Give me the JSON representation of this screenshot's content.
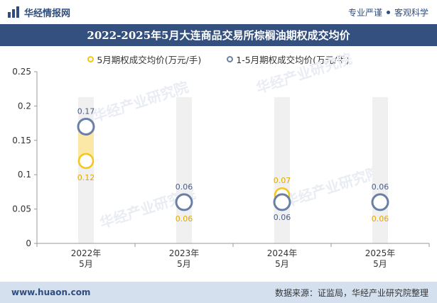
{
  "header": {
    "brand": "华经情报网",
    "tagline_left": "专业严谨",
    "tagline_right": "客观科学"
  },
  "title": "2022-2025年5月大连商品交易所棕榈油期权成交均价",
  "legend": [
    {
      "label": "5月期权成交均价(万元/手)",
      "color": "#f5c518"
    },
    {
      "label": "1-5月期权成交均价(万元/手)",
      "color": "#6a7fa6"
    }
  ],
  "watermark": "华经产业研究院",
  "footer": {
    "website": "www.huaon.com",
    "source": "数据来源：证监局，华经产业研究院整理"
  },
  "chart_data": {
    "type": "scatter",
    "categories": [
      "2022年\n5月",
      "2023年\n5月",
      "2024年\n5月",
      "2025年\n5月"
    ],
    "series": [
      {
        "name": "5月期权成交均价(万元/手)",
        "values": [
          0.12,
          0.06,
          0.07,
          0.06
        ],
        "labels": [
          "0.12",
          "0.06",
          "0.07",
          "0.06"
        ]
      },
      {
        "name": "1-5月期权成交均价(万元/手)",
        "values": [
          0.17,
          0.06,
          0.06,
          0.06
        ],
        "labels": [
          "0.17",
          "0.06",
          "0.06",
          "0.06"
        ]
      }
    ],
    "ylim": [
      0,
      0.25
    ],
    "yticks": [
      "0",
      "0.05",
      "0.1",
      "0.15",
      "0.2",
      "0.25"
    ],
    "ytick_values": [
      0,
      0.05,
      0.1,
      0.15,
      0.2,
      0.25
    ],
    "title": "",
    "xlabel": "",
    "ylabel": "",
    "colors": {
      "monthly_stroke": "#f5c518",
      "ytd_stroke": "#6a7fa6",
      "highlight": "#fbe7a6",
      "column": "#f0f0f0",
      "label_monthly": "#e0a800",
      "label_ytd": "#4a5e85"
    }
  }
}
